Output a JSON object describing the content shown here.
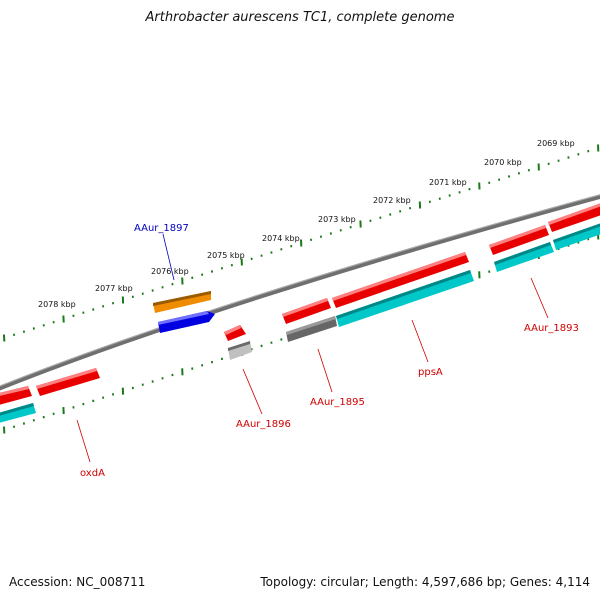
{
  "title": "Arthrobacter aurescens TC1, complete genome",
  "footer": {
    "accession": "Accession: NC_008711",
    "summary": "Topology: circular; Length: 4,597,686 bp; Genes: 4,114"
  },
  "colors": {
    "backbone": "#7a7a7a",
    "ticks": "#1a7a1a",
    "gene": "#e80000",
    "cds": "#00c8c8",
    "highlight_gene": "#0000e0",
    "highlight_cds": "#f08c00",
    "pseudo_dark": "#666666",
    "pseudo_light": "#c0c0c0",
    "label_red": "#d00000",
    "label_blue": "#0000c0"
  },
  "scale": {
    "labels": [
      "2069 kbp",
      "2070 kbp",
      "2071 kbp",
      "2072 kbp",
      "2073 kbp",
      "2074 kbp",
      "2075 kbp",
      "2076 kbp",
      "2077 kbp",
      "2078 kbp"
    ]
  },
  "genes": [
    {
      "name": "AAur_1893",
      "color": "label_red"
    },
    {
      "name": "ppsA",
      "color": "label_red"
    },
    {
      "name": "AAur_1895",
      "color": "label_red"
    },
    {
      "name": "AAur_1896",
      "color": "label_red"
    },
    {
      "name": "AAur_1897",
      "color": "label_blue"
    },
    {
      "name": "oxdA",
      "color": "label_red"
    }
  ]
}
